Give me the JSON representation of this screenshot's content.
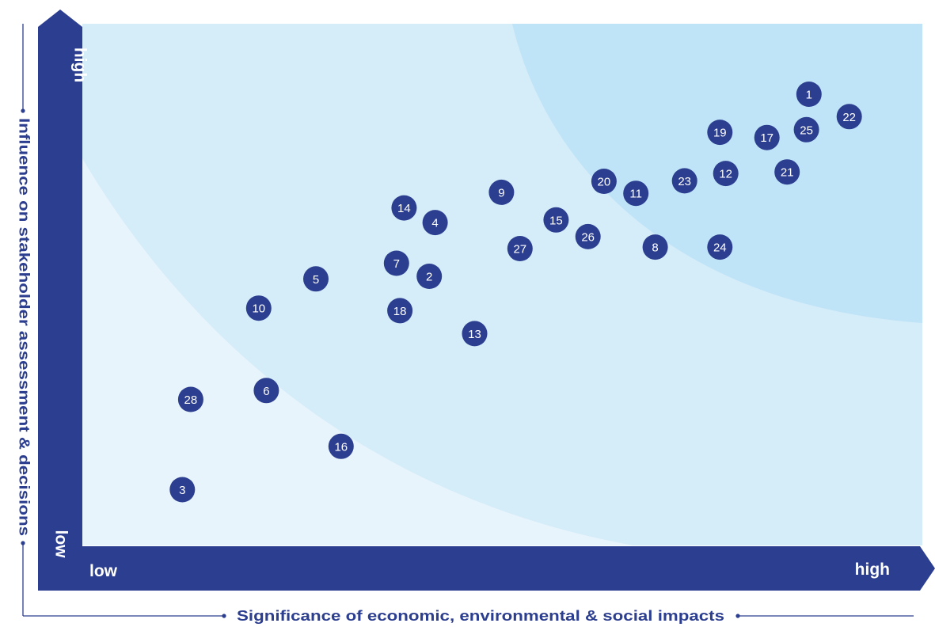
{
  "chart_data": {
    "type": "scatter",
    "title": "",
    "xlabel": "Significance of economic, environmental & social impacts",
    "ylabel": "Influence on stakeholder assessment & decisions",
    "x_ticks": [
      "low",
      "high"
    ],
    "y_ticks": [
      "low",
      "high"
    ],
    "xlim": [
      0,
      100
    ],
    "ylim": [
      0,
      100
    ],
    "grid": false,
    "points": [
      {
        "label": "1",
        "x": 86.5,
        "y": 86.5
      },
      {
        "label": "2",
        "x": 41.3,
        "y": 51.6
      },
      {
        "label": "3",
        "x": 11.9,
        "y": 10.7
      },
      {
        "label": "4",
        "x": 42.0,
        "y": 61.9
      },
      {
        "label": "5",
        "x": 27.8,
        "y": 51.1
      },
      {
        "label": "6",
        "x": 21.9,
        "y": 29.7
      },
      {
        "label": "7",
        "x": 37.4,
        "y": 54.1
      },
      {
        "label": "8",
        "x": 68.2,
        "y": 57.2
      },
      {
        "label": "9",
        "x": 49.9,
        "y": 67.7
      },
      {
        "label": "10",
        "x": 21.0,
        "y": 45.5
      },
      {
        "label": "11",
        "x": 65.9,
        "y": 67.5
      },
      {
        "label": "12",
        "x": 76.6,
        "y": 71.3
      },
      {
        "label": "13",
        "x": 46.7,
        "y": 40.6
      },
      {
        "label": "14",
        "x": 38.3,
        "y": 64.7
      },
      {
        "label": "15",
        "x": 56.4,
        "y": 62.4
      },
      {
        "label": "16",
        "x": 30.8,
        "y": 19.0
      },
      {
        "label": "17",
        "x": 81.5,
        "y": 78.2
      },
      {
        "label": "18",
        "x": 37.8,
        "y": 45.0
      },
      {
        "label": "19",
        "x": 75.9,
        "y": 79.2
      },
      {
        "label": "20",
        "x": 62.1,
        "y": 69.8
      },
      {
        "label": "21",
        "x": 83.9,
        "y": 71.6
      },
      {
        "label": "22",
        "x": 91.3,
        "y": 82.2
      },
      {
        "label": "23",
        "x": 71.7,
        "y": 69.9
      },
      {
        "label": "24",
        "x": 75.9,
        "y": 57.2
      },
      {
        "label": "25",
        "x": 86.2,
        "y": 79.7
      },
      {
        "label": "26",
        "x": 60.2,
        "y": 59.2
      },
      {
        "label": "27",
        "x": 52.1,
        "y": 56.9
      },
      {
        "label": "28",
        "x": 12.9,
        "y": 28.0
      }
    ]
  },
  "colors": {
    "axis_band": "#2c3e8f",
    "marker": "#2c3e8f",
    "marker_text": "#ffffff",
    "zone_low": "#e8f4fc",
    "zone_mid": "#d5ecf9",
    "zone_high": "#bfe3f7",
    "axis_title": "#2c3e8f"
  }
}
